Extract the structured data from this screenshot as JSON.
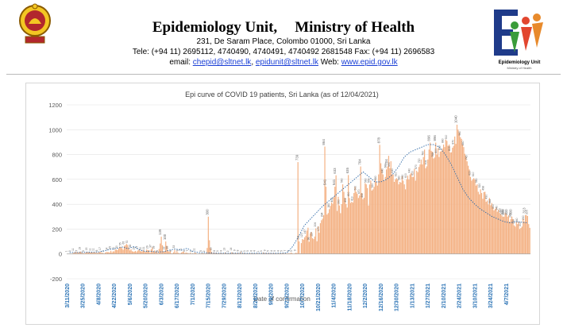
{
  "header": {
    "title_left": "Epidemiology Unit,",
    "title_right": "Ministry of Health",
    "address": "231, De Saram Place, Colombo 01000, Sri Lanka",
    "tel": "Tele: (+94 11) 2695112, 4740490, 4740491, 4740492 2681548  Fax: (+94 11) 2696583",
    "email_prefix": "email: ",
    "email1": "chepid@sltnet.lk",
    "email_sep": ", ",
    "email2": "epidunit@sltnet.lk",
    "web_prefix": " Web: ",
    "web": "www.epid.gov.lk",
    "logo_caption": "Epidemiology Unit",
    "logo_sub": "Ministry of Health"
  },
  "colors": {
    "bar": "#f4b183",
    "bar_stroke": "#ed9d63",
    "trend": "#5a5a5a",
    "trend2": "#2f6aa8",
    "axis_text": "#595959",
    "date_text": "#2e75b6",
    "grid": "#e3e3e3"
  },
  "chart_data": {
    "type": "bar",
    "title": "Epi curve of COVID 19 patients, Sri Lanka  (as of 12/04/2021)",
    "xlabel": "Date of confirmation",
    "ylabel": "",
    "ylim": [
      -200,
      1200
    ],
    "yticks": [
      -200,
      0,
      200,
      400,
      600,
      800,
      1000,
      1200
    ],
    "grid": true,
    "start_date": "3/11/2020",
    "end_date": "4/11/2021",
    "xtick_labels": [
      "3/11/2020",
      "3/25/2020",
      "4/8/2020",
      "4/22/2020",
      "5/6/2020",
      "5/20/2020",
      "6/3/2020",
      "6/17/2020",
      "7/1/2020",
      "7/15/2020",
      "7/29/2020",
      "8/12/2020",
      "8/26/2020",
      "9/9/2020",
      "9/23/2020",
      "10/7/2020",
      "10/21/2020",
      "11/4/2020",
      "11/18/2020",
      "12/2/2020",
      "12/16/2020",
      "12/30/2020",
      "1/13/2021",
      "1/27/2021",
      "2/10/2021",
      "2/24/2021",
      "3/10/2021",
      "3/24/2021",
      "4/7/2021"
    ],
    "series": [
      {
        "kind": "bar",
        "note": "daily confirmed cases from 3/11/2020 to 4/11/2021, estimated from the bars",
        "values": [
          1,
          0,
          2,
          3,
          1,
          5,
          11,
          10,
          18,
          7,
          13,
          16,
          19,
          12,
          7,
          5,
          8,
          14,
          15,
          13,
          13,
          11,
          13,
          12,
          11,
          13,
          9,
          8,
          12,
          14,
          17,
          8,
          9,
          3,
          10,
          16,
          14,
          15,
          11,
          25,
          12,
          21,
          20,
          35,
          35,
          30,
          44,
          60,
          55,
          46,
          33,
          65,
          70,
          80,
          72,
          51,
          28,
          38,
          22,
          18,
          19,
          24,
          15,
          27,
          35,
          25,
          20,
          21,
          31,
          21,
          15,
          36,
          29,
          30,
          9,
          37,
          53,
          16,
          28,
          17,
          21,
          6,
          40,
          84,
          139,
          70,
          17,
          22,
          100,
          66,
          26,
          17,
          23,
          5,
          5,
          13,
          33,
          8,
          22,
          9,
          4,
          5,
          11,
          16,
          18,
          6,
          12,
          8,
          7,
          3,
          10,
          2,
          6,
          3,
          11,
          8,
          0,
          0,
          4,
          1,
          5,
          6,
          4,
          2,
          4,
          48,
          300,
          110,
          45,
          16,
          5,
          13,
          6,
          11,
          5,
          3,
          5,
          10,
          4,
          5,
          3,
          13,
          3,
          4,
          2,
          5,
          6,
          14,
          10,
          4,
          9,
          6,
          5,
          8,
          3,
          16,
          2,
          6,
          8,
          3,
          3,
          2,
          5,
          1,
          6,
          6,
          4,
          4,
          4,
          0,
          7,
          1,
          4,
          1,
          3,
          13,
          4,
          9,
          3,
          7,
          5,
          7,
          5,
          4,
          9,
          6,
          5,
          2,
          7,
          4,
          6,
          5,
          5,
          10,
          2,
          7,
          3,
          5,
          6,
          5,
          11,
          5,
          2,
          4,
          9,
          7,
          739,
          101,
          4,
          87,
          120,
          114,
          134,
          147,
          188,
          211,
          98,
          166,
          177,
          127,
          119,
          140,
          206,
          102,
          222,
          170,
          247,
          271,
          284,
          311,
          864,
          541,
          317,
          329,
          360,
          387,
          415,
          404,
          456,
          541,
          633,
          346,
          460,
          390,
          328,
          401,
          560,
          500,
          450,
          402,
          373,
          635,
          450,
          410,
          420,
          413,
          490,
          540,
          500,
          484,
          450,
          470,
          704,
          490,
          440,
          452,
          570,
          560,
          530,
          390,
          559,
          590,
          510,
          520,
          540,
          600,
          580,
          550,
          640,
          878,
          730,
          680,
          640,
          590,
          620,
          680,
          704,
          790,
          690,
          746,
          640,
          640,
          580,
          600,
          610,
          600,
          560,
          580,
          574,
          624,
          590,
          560,
          520,
          600,
          630,
          599,
          640,
          650,
          620,
          620,
          686,
          590,
          670,
          658,
          700,
          720,
          760,
          720,
          780,
          840,
          690,
          705,
          760,
          840,
          896,
          830,
          823,
          768,
          776,
          896,
          800,
          850,
          780,
          823,
          828,
          848,
          880,
          860,
          920,
          910,
          870,
          880,
          816,
          818,
          855,
          870,
          945,
          886,
          1040,
          1000,
          976,
          940,
          926,
          880,
          860,
          806,
          780,
          745,
          710,
          680,
          620,
          590,
          600,
          610,
          598,
          550,
          560,
          500,
          480,
          520,
          490,
          444,
          498,
          500,
          420,
          430,
          398,
          450,
          392,
          410,
          376,
          350,
          360,
          370,
          340,
          356,
          330,
          320,
          310,
          300,
          300,
          330,
          320,
          300,
          310,
          260,
          280,
          300,
          280,
          230,
          220,
          260,
          240,
          260,
          200,
          210,
          220,
          280,
          260,
          313,
          312,
          305,
          240,
          210
        ]
      },
      {
        "kind": "line",
        "name": "",
        "note": "dotted moving-average trend estimated from the chart, weekly points",
        "values": [
          12,
          12,
          12,
          14,
          14,
          16,
          26,
          38,
          45,
          56,
          42,
          60,
          30,
          20,
          20,
          15,
          18,
          30,
          40,
          30,
          45,
          20,
          10,
          10,
          8,
          6,
          6,
          5,
          6,
          6,
          5,
          5,
          6,
          5,
          5,
          5,
          6,
          8,
          60,
          140,
          230,
          280,
          330,
          380,
          420,
          460,
          500,
          540,
          580,
          620,
          660,
          620,
          580,
          580,
          600,
          640,
          700,
          780,
          820,
          840,
          860,
          880,
          880,
          860,
          800,
          720,
          620,
          520,
          450,
          400,
          360,
          330,
          300,
          280,
          260,
          250,
          260,
          255,
          250
        ]
      }
    ],
    "annotations": [
      {
        "label": "739"
      },
      {
        "label": "864"
      },
      {
        "label": "300"
      },
      {
        "label": "878"
      },
      {
        "label": "704"
      },
      {
        "label": "635"
      },
      {
        "label": "541"
      },
      {
        "label": "633"
      },
      {
        "label": "1040"
      },
      {
        "label": "896"
      },
      {
        "label": "313"
      },
      {
        "label": "139"
      },
      {
        "label": "100"
      }
    ]
  }
}
